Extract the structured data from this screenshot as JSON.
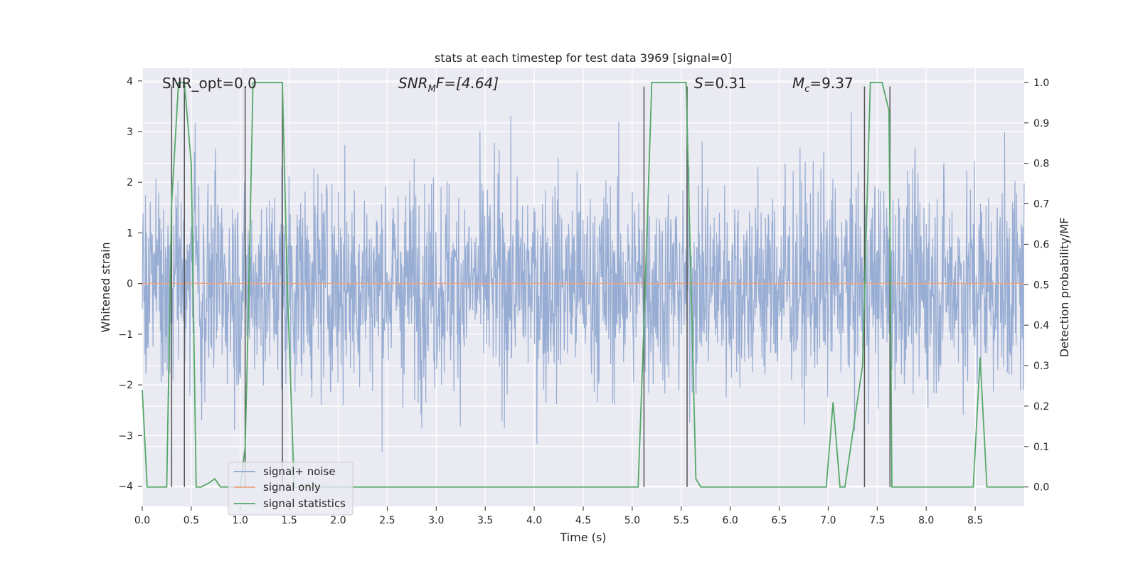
{
  "chart_data": {
    "type": "line",
    "title": "stats at each timestep for test data 3969 [signal=0]",
    "xlabel": "Time (s)",
    "ylabel_left": "Whitened strain",
    "ylabel_right": "Detection probability/MF",
    "xlim": [
      0,
      9.0
    ],
    "ylim_left": [
      -4.4,
      4.25
    ],
    "ylim_right": [
      -0.048,
      1.035
    ],
    "x_ticks": [
      "0.0",
      "0.5",
      "1.0",
      "1.5",
      "2.0",
      "2.5",
      "3.0",
      "3.5",
      "4.0",
      "4.5",
      "5.0",
      "5.5",
      "6.0",
      "6.5",
      "7.0",
      "7.5",
      "8.0",
      "8.5"
    ],
    "y_ticks_left": [
      "−4",
      "−3",
      "−2",
      "−1",
      "0",
      "1",
      "2",
      "3",
      "4"
    ],
    "y_ticks_right": [
      "0.0",
      "0.1",
      "0.2",
      "0.3",
      "0.4",
      "0.5",
      "0.6",
      "0.7",
      "0.8",
      "0.9",
      "1.0"
    ],
    "grid": true,
    "legend_position": "lower-left",
    "annotations": {
      "snr_opt": "SNR_opt=0.0",
      "snr_mf_base": "SNR",
      "snr_mf_sub": "M",
      "snr_mf_rest": "F=[4.64]",
      "s_base": "S",
      "s_rest": "=0.31",
      "mc_base": "M",
      "mc_sub": "c",
      "mc_rest": "=9.37"
    },
    "series": [
      {
        "name": "signal+ noise",
        "color": "#8fa6cf",
        "description_values": "noise-like whitened strain, roughly Gaussian between -3.8 and 3.9",
        "sigma": 1.05,
        "seed": 3969,
        "n_samples": 2200
      },
      {
        "name": "signal only",
        "color": "#e8a383",
        "constant_value": 0
      },
      {
        "name": "signal statistics",
        "color": "#55a868",
        "x": [
          0.0,
          0.05,
          0.25,
          0.3,
          0.37,
          0.43,
          0.5,
          0.55,
          0.6,
          0.68,
          0.74,
          0.8,
          1.0,
          1.05,
          1.08,
          1.13,
          1.43,
          1.48,
          1.55,
          1.6,
          3.0,
          5.06,
          5.12,
          5.2,
          5.55,
          5.58,
          5.65,
          5.7,
          6.98,
          7.05,
          7.12,
          7.17,
          7.35,
          7.43,
          7.55,
          7.62,
          7.65,
          7.7,
          8.48,
          8.55,
          8.62,
          8.67,
          9.0
        ],
        "y": [
          0.24,
          0.0,
          0.0,
          0.7,
          1.0,
          1.0,
          0.8,
          0.0,
          0.0,
          0.01,
          0.02,
          0.0,
          0.0,
          0.1,
          0.4,
          1.0,
          1.0,
          0.5,
          0.0,
          0.0,
          0.0,
          0.0,
          0.4,
          1.0,
          1.0,
          0.7,
          0.02,
          0.0,
          0.0,
          0.21,
          0.0,
          0.0,
          0.3,
          1.0,
          1.0,
          0.93,
          0.0,
          0.0,
          0.0,
          0.32,
          0.0,
          0.0,
          0.0
        ]
      }
    ],
    "vertical_markers": [
      {
        "x": 0.3,
        "y_top": 0.99
      },
      {
        "x": 0.43,
        "y_top": 0.99
      },
      {
        "x": 1.05,
        "y_top": 0.99
      },
      {
        "x": 1.43,
        "y_top": 0.99
      },
      {
        "x": 5.12,
        "y_top": 0.99
      },
      {
        "x": 5.56,
        "y_top": 0.99
      },
      {
        "x": 7.37,
        "y_top": 0.99
      },
      {
        "x": 7.63,
        "y_top": 0.99
      }
    ]
  }
}
